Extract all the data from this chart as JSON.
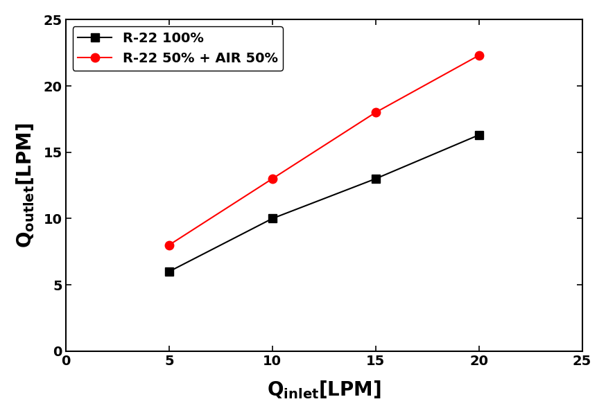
{
  "series": [
    {
      "label": "R-22 100%",
      "x": [
        5,
        10,
        15,
        20
      ],
      "y": [
        6,
        10,
        13,
        16.3
      ],
      "color": "#000000",
      "marker": "s",
      "markersize": 8,
      "linewidth": 1.5
    },
    {
      "label": "R-22 50% + AIR 50%",
      "x": [
        5,
        10,
        15,
        20
      ],
      "y": [
        8,
        13,
        18,
        22.3
      ],
      "color": "#ff0000",
      "marker": "o",
      "markersize": 9,
      "linewidth": 1.5
    }
  ],
  "xlim": [
    0,
    25
  ],
  "ylim": [
    0,
    25
  ],
  "xticks": [
    0,
    5,
    10,
    15,
    20,
    25
  ],
  "yticks": [
    0,
    5,
    10,
    15,
    20,
    25
  ],
  "legend_loc": "upper left",
  "background_color": "#ffffff",
  "tick_fontsize": 14,
  "legend_fontsize": 14,
  "label_fontsize": 20
}
